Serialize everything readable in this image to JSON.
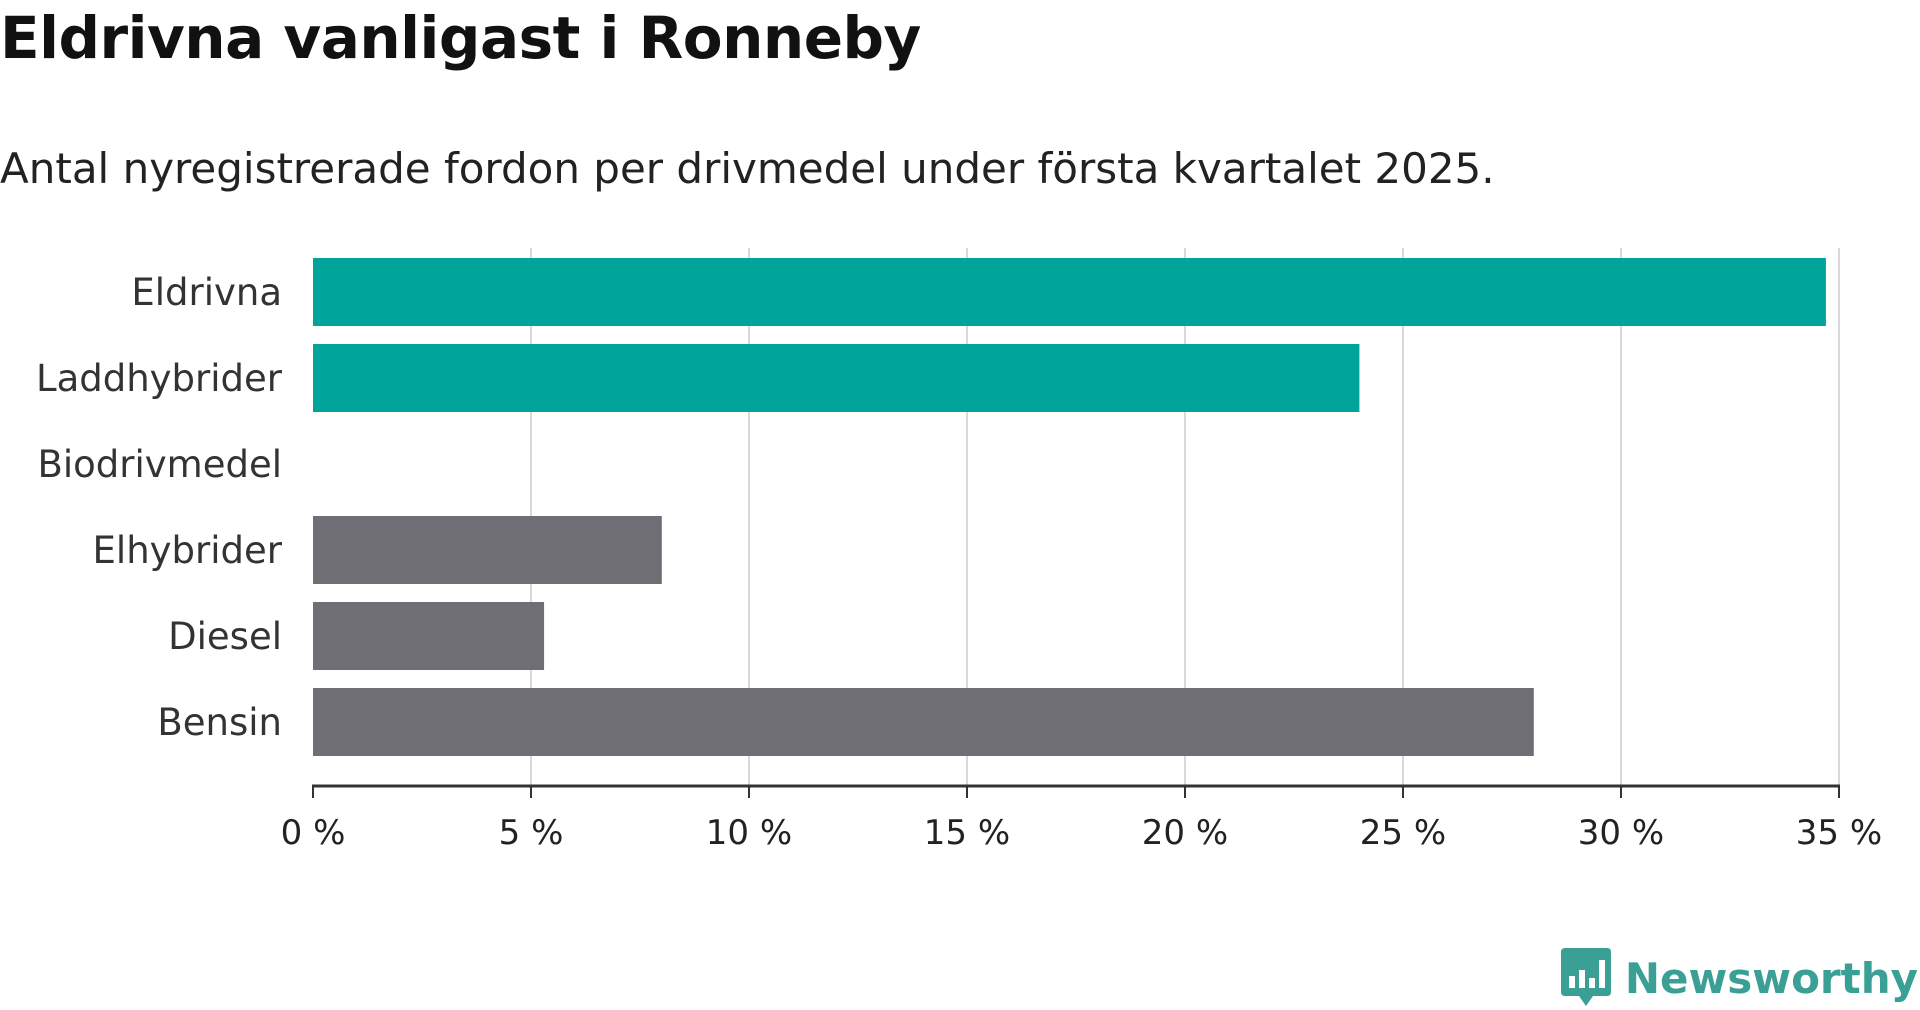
{
  "title": "Eldrivna vanligast i Ronneby",
  "subtitle": "Antal nyregistrerade fordon per drivmedel under första kvartalet 2025.",
  "brand": {
    "name": "Newsworthy",
    "icon": "newsworthy-logo-icon",
    "color": "#3a9f95"
  },
  "colors": {
    "highlight": "#00a49a",
    "other": "#6f6e75",
    "grid": "#d9d9d9",
    "axis": "#333333"
  },
  "chart_data": {
    "type": "bar",
    "orientation": "horizontal",
    "categories": [
      "Eldrivna",
      "Laddhybrider",
      "Biodrivmedel",
      "Elhybrider",
      "Diesel",
      "Bensin"
    ],
    "values": [
      34.7,
      24.0,
      0,
      8.0,
      5.3,
      28.0
    ],
    "bar_colors": [
      "#00a49a",
      "#00a49a",
      "#6f6e75",
      "#6f6e75",
      "#6f6e75",
      "#6f6e75"
    ],
    "xlim": [
      0,
      35
    ],
    "xticks": [
      0,
      5,
      10,
      15,
      20,
      25,
      30,
      35
    ],
    "xtick_labels": [
      "0 %",
      "5 %",
      "10 %",
      "15 %",
      "20 %",
      "25 %",
      "30 %",
      "35 %"
    ],
    "grid": true,
    "legend": "none"
  }
}
